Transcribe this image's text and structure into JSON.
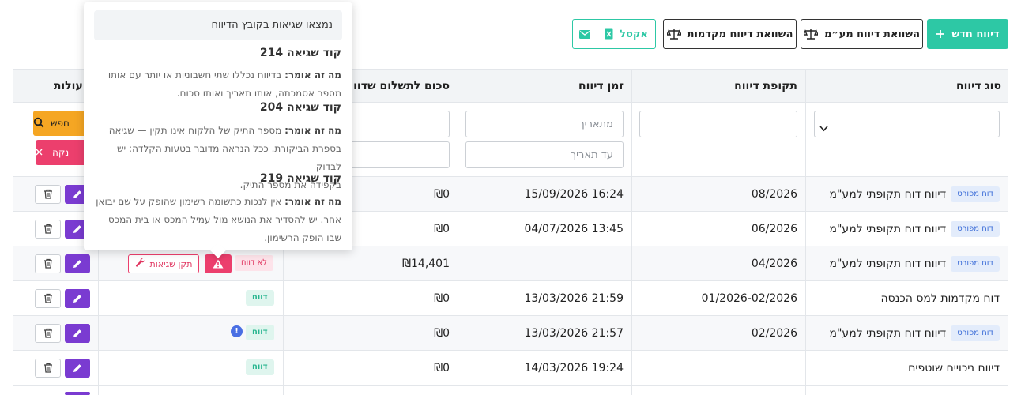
{
  "toolbar": {
    "new_report": "דיווח חדש",
    "compare_vat": "השוואת דיווח מע״מ",
    "compare_advances": "השוואת דיווח מקדמות",
    "excel": "אקסל"
  },
  "table": {
    "headers": {
      "type": "סוג דיווח",
      "period": "תקופת דיווח",
      "time": "זמן דיווח",
      "amount": "סכום לתשלום שדווח",
      "actions": "פעולות"
    },
    "filters": {
      "from_date_placeholder": "מתאריך",
      "to_date_placeholder": "עד תאריך",
      "search": "חפש",
      "clear": "נקה"
    },
    "rows": [
      {
        "type": "דיווח דוח תקופתי למע\"מ",
        "badge": "דוח מפורט",
        "period": "08/2026",
        "time": "16:24 15/09/2026",
        "amount": "₪0"
      },
      {
        "type": "דיווח דוח תקופתי למע\"מ",
        "badge": "דוח מפורט",
        "period": "06/2026",
        "time": "13:45 04/07/2026",
        "amount": "₪0"
      },
      {
        "type": "דיווח דוח תקופתי למע\"מ",
        "badge": "דוח מפורט",
        "period": "04/2026",
        "time": "",
        "amount": "₪14,401",
        "status": "לא דווח",
        "fix": "תקן שגיאות"
      },
      {
        "type": "דוח מקדמות למס הכנסה",
        "badge": "",
        "period": "01/2026-02/2026",
        "time": "21:59 13/03/2026",
        "amount": "₪0",
        "status": "דווח"
      },
      {
        "type": "דיווח דוח תקופתי למע\"מ",
        "badge": "דוח מפורט",
        "period": "02/2026",
        "time": "21:57 13/03/2026",
        "amount": "₪0",
        "status": "דווח",
        "info": "!"
      },
      {
        "type": "דיווח ניכויים שוטפים",
        "badge": "",
        "period": "",
        "time": "19:24 14/03/2026",
        "amount": "₪0",
        "status": "דווח"
      }
    ]
  },
  "popover": {
    "header": "נמצאו שגיאות בקובץ הדיווח",
    "what_label": "מה זה אומר:",
    "errors": [
      {
        "code": "קוד שגיאה 214",
        "line1": " בדיווח נכללו שתי חשבוניות או יותר עם אותו",
        "line2": "מספר אסמכתה, אותו תאריך ואותו סכום."
      },
      {
        "code": "קוד שגיאה 204",
        "line1": " מספר התיק של הלקוח אינו תקין — שגיאה",
        "line2": "בספרת הביקורת. ככל הנראה מדובר בטעות הקלדה: יש לבדוק",
        "line3": "בקפידה את מספר התיק."
      },
      {
        "code": "קוד שגיאה 219",
        "line1": " אין לנכות כתשומה רשימון שהופק על שם יבואן",
        "line2": "אחר. יש להסדיר את הנושא מול עמיל המכס או בית המכס",
        "line3": "שבו הופק הרשימון."
      }
    ]
  },
  "colors": {
    "accent": "#2dc8a5",
    "edit": "#7a3bd1",
    "danger": "#ec3f6d",
    "search": "#f5a623"
  }
}
